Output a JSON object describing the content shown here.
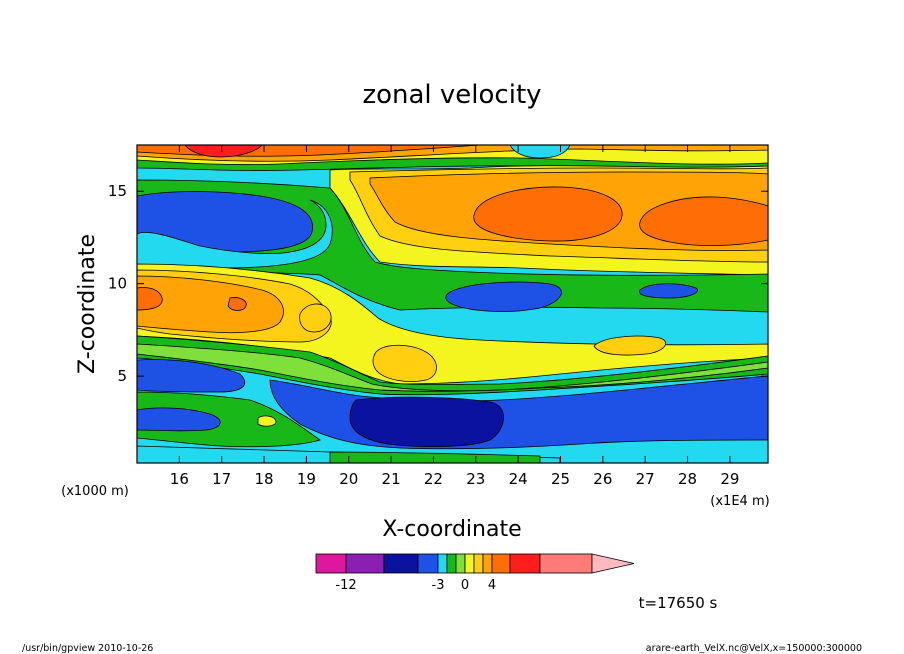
{
  "chart_data": {
    "type": "contour",
    "title": "zonal velocity",
    "xlabel": "X-coordinate",
    "ylabel": "Z-coordinate",
    "x_unit": "(x1E4 m)",
    "y_unit": "(x1000 m)",
    "x_ticks": [
      16,
      17,
      18,
      19,
      20,
      21,
      22,
      23,
      24,
      25,
      26,
      27,
      28,
      29
    ],
    "y_ticks": [
      5,
      10,
      15
    ],
    "xlim": [
      15,
      29.9
    ],
    "ylim": [
      0.3,
      17.5
    ],
    "time_label": "t=17650 s",
    "colorbar": {
      "colors": [
        "#e0169f",
        "#8a1fb2",
        "#0c12a0",
        "#1e52e6",
        "#23d9ef",
        "#18b818",
        "#7fe03a",
        "#f4f41f",
        "#ffcf10",
        "#ffa307",
        "#ff6e05",
        "#ff1d1d",
        "#ff7b78",
        "#ffb9c0"
      ],
      "tick_labels": [
        {
          "value": -12,
          "label": "-12"
        },
        {
          "value": -3,
          "label": "-3"
        },
        {
          "value": 0,
          "label": "0"
        },
        {
          "value": 4,
          "label": "4"
        }
      ]
    },
    "field_summary": [
      {
        "x": [
          15,
          29.9
        ],
        "z": [
          16.8,
          17.5
        ],
        "level": "red to orange"
      },
      {
        "x": [
          15,
          18.5
        ],
        "z": [
          12.5,
          15.5
        ],
        "level": "blue"
      },
      {
        "x": [
          23,
          26
        ],
        "z": [
          12.5,
          15
        ],
        "level": "dark orange"
      },
      {
        "x": [
          27.5,
          29.9
        ],
        "z": [
          12,
          14.5
        ],
        "level": "dark orange"
      },
      {
        "x": [
          15,
          19
        ],
        "z": [
          7.5,
          10.5
        ],
        "level": "orange"
      },
      {
        "x": [
          23,
          25
        ],
        "z": [
          8.5,
          10
        ],
        "level": "blue"
      },
      {
        "x": [
          15.5,
          19.5
        ],
        "z": [
          3,
          5.5
        ],
        "level": "blue"
      },
      {
        "x": [
          19.5,
          29.9
        ],
        "z": [
          1,
          4.5
        ],
        "level": "blue"
      },
      {
        "x": [
          20.5,
          23.5
        ],
        "z": [
          1.2,
          3.2
        ],
        "level": "dark blue"
      }
    ]
  },
  "footer": {
    "left": "/usr/bin/gpview   2010-10-26",
    "right": "arare-earth_VelX.nc@VelX,x=150000:300000"
  }
}
